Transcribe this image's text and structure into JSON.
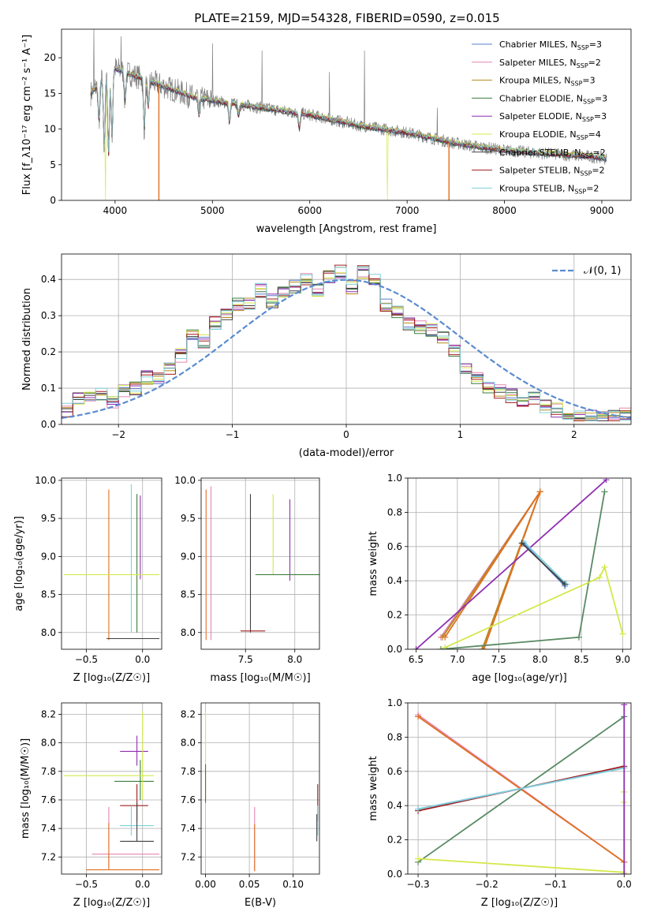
{
  "colors": {
    "Chabrier MILES": "#5b7fce",
    "Salpeter MILES": "#e286b2",
    "Kroupa MILES": "#b58a1a",
    "Chabrier ELODIE": "#3e7d3e",
    "Salpeter ELODIE": "#8e2fb0",
    "Kroupa ELODIE": "#d4e84a",
    "Chabrier STELIB": "#404040",
    "Salpeter STELIB": "#a01c1c",
    "Kroupa STELIB": "#7fd0dc",
    "Orange overlay": "#e07020",
    "Green overlay": "#5a8a64",
    "Data spectrum": "#808080",
    "Normal curve": "#5b8bd0"
  },
  "chart_data": [
    {
      "id": "spectrum",
      "type": "line",
      "title": "PLATE=2159, MJD=54328, FIBERID=0590, z=0.015",
      "xlabel": "wavelength [Angstrom, rest frame]",
      "ylabel": "Flux [f_λ10⁻¹⁷ erg cm⁻² s⁻¹ A⁻¹]",
      "xlim": [
        3450,
        9300
      ],
      "ylim": [
        0,
        24
      ],
      "xticks": [
        4000,
        5000,
        6000,
        7000,
        8000,
        9000
      ],
      "yticks": [
        0,
        5,
        10,
        15,
        20
      ],
      "grid": false,
      "legend_position": "top-right",
      "legend": [
        {
          "name": "Chabrier MILES, N_SSP=3",
          "base": "Chabrier MILES, N",
          "sub": "SSP",
          "tail": "=3"
        },
        {
          "name": "Salpeter MILES, N_SSP=2",
          "base": "Salpeter MILES, N",
          "sub": "SSP",
          "tail": "=2"
        },
        {
          "name": "Kroupa MILES, N_SSP=3",
          "base": "Kroupa MILES, N",
          "sub": "SSP",
          "tail": "=3"
        },
        {
          "name": "Chabrier ELODIE, N_SSP=3",
          "base": "Chabrier ELODIE, N",
          "sub": "SSP",
          "tail": "=3"
        },
        {
          "name": "Salpeter ELODIE, N_SSP=3",
          "base": "Salpeter ELODIE, N",
          "sub": "SSP",
          "tail": "=3"
        },
        {
          "name": "Kroupa ELODIE, N_SSP=4",
          "base": "Kroupa ELODIE, N",
          "sub": "SSP",
          "tail": "=4"
        },
        {
          "name": "Chabrier STELIB, N_SSP=2",
          "base": "Chabrier STELIB, N",
          "sub": "SSP",
          "tail": "=2"
        },
        {
          "name": "Salpeter STELIB, N_SSP=2",
          "base": "Salpeter STELIB, N",
          "sub": "SSP",
          "tail": "=2"
        },
        {
          "name": "Kroupa STELIB, N_SSP=2",
          "base": "Kroupa STELIB, N",
          "sub": "SSP",
          "tail": "=2"
        }
      ],
      "continuum": {
        "x": [
          3750,
          3900,
          4000,
          4200,
          4500,
          4800,
          5000,
          5500,
          6000,
          6500,
          7000,
          7500,
          8000,
          8500,
          9000,
          9050
        ],
        "y": [
          15,
          17.5,
          18.5,
          17.5,
          16,
          14.5,
          14,
          13,
          12,
          10.5,
          9.5,
          8,
          7,
          6.5,
          6,
          5.8
        ]
      },
      "absorption_features": [
        {
          "x": 3835,
          "y": 11
        },
        {
          "x": 3889,
          "y": 7.5
        },
        {
          "x": 3933,
          "y": 6.5
        },
        {
          "x": 3968,
          "y": 9
        },
        {
          "x": 4102,
          "y": 14
        },
        {
          "x": 4300,
          "y": 10
        },
        {
          "x": 4340,
          "y": 13
        },
        {
          "x": 4861,
          "y": 12
        },
        {
          "x": 5175,
          "y": 11
        },
        {
          "x": 5270,
          "y": 12
        },
        {
          "x": 5893,
          "y": 10
        }
      ],
      "model_dropouts": [
        {
          "x": 3900,
          "y": 0,
          "series": "Kroupa ELODIE"
        },
        {
          "x": 4450,
          "y": 0,
          "series": "Orange overlay"
        },
        {
          "x": 6800,
          "y": 0,
          "series": "Kroupa ELODIE"
        },
        {
          "x": 7430,
          "y": 0,
          "series": "Orange overlay"
        }
      ],
      "data_spikes": [
        {
          "x": 3780,
          "y": 24
        },
        {
          "x": 4060,
          "y": 23
        },
        {
          "x": 5000,
          "y": 22
        },
        {
          "x": 5510,
          "y": 21
        },
        {
          "x": 6200,
          "y": 18
        },
        {
          "x": 6560,
          "y": 21
        },
        {
          "x": 7310,
          "y": 13
        }
      ]
    },
    {
      "id": "residuals",
      "type": "line",
      "xlabel": "(data-model)/error",
      "ylabel": "Normed distribution",
      "xlim": [
        -2.5,
        2.5
      ],
      "ylim": [
        0,
        0.47
      ],
      "xticks": [
        -2,
        -1,
        0,
        1,
        2
      ],
      "yticks": [
        0.0,
        0.1,
        0.2,
        0.3,
        0.4
      ],
      "grid": true,
      "legend_position": "top-right",
      "legend": [
        "𝒩(0, 1)"
      ],
      "bins": [
        -2.5,
        -2.4,
        -2.3,
        -2.2,
        -2.1,
        -2.0,
        -1.9,
        -1.8,
        -1.7,
        -1.6,
        -1.5,
        -1.4,
        -1.3,
        -1.2,
        -1.1,
        -1.0,
        -0.9,
        -0.8,
        -0.7,
        -0.6,
        -0.5,
        -0.4,
        -0.3,
        -0.2,
        -0.1,
        0.0,
        0.1,
        0.2,
        0.3,
        0.4,
        0.5,
        0.6,
        0.7,
        0.8,
        0.9,
        1.0,
        1.1,
        1.2,
        1.3,
        1.4,
        1.5,
        1.6,
        1.7,
        1.8,
        1.9,
        2.0,
        2.1,
        2.2,
        2.3,
        2.4,
        2.5
      ],
      "hist_base": [
        0.04,
        0.075,
        0.07,
        0.08,
        0.06,
        0.09,
        0.1,
        0.13,
        0.13,
        0.15,
        0.19,
        0.25,
        0.23,
        0.28,
        0.3,
        0.33,
        0.33,
        0.37,
        0.34,
        0.37,
        0.38,
        0.4,
        0.37,
        0.41,
        0.42,
        0.38,
        0.42,
        0.4,
        0.33,
        0.31,
        0.28,
        0.27,
        0.26,
        0.24,
        0.2,
        0.16,
        0.13,
        0.1,
        0.09,
        0.08,
        0.06,
        0.07,
        0.05,
        0.04,
        0.03,
        0.025,
        0.02,
        0.02,
        0.02,
        0.03
      ],
      "normal_curve": {
        "name": "𝒩(0, 1)",
        "mean": 0,
        "sigma": 1
      }
    },
    {
      "id": "age_vs_Z",
      "type": "scatter",
      "xlabel": "Z [log₁₀(Z/Z☉)]",
      "ylabel": "age  [log₁₀(age/yr)]",
      "xlim": [
        -0.72,
        0.17
      ],
      "ylim": [
        7.78,
        10.03
      ],
      "xticks": [
        -0.5,
        0.0
      ],
      "yticks": [
        8.0,
        8.5,
        9.0,
        9.5,
        10.0
      ],
      "grid": true,
      "errorbars": [
        {
          "x": -0.3,
          "y": 9.88,
          "y0": 7.9,
          "y1": 9.88,
          "series": "Orange overlay"
        },
        {
          "x": -0.1,
          "y": 9.95,
          "y0": 8.0,
          "y1": 9.95,
          "series": "Kroupa STELIB"
        },
        {
          "x": -0.02,
          "y": 9.8,
          "y0": 8.7,
          "y1": 9.8,
          "series": "Salpeter ELODIE"
        },
        {
          "x": -0.05,
          "y": 9.82,
          "y0": 8.0,
          "y1": 9.82,
          "series": "Chabrier ELODIE"
        },
        {
          "x": -0.32,
          "y": 7.92,
          "x0": -0.32,
          "x1": 0.15,
          "series": "Chabrier STELIB"
        },
        {
          "x": 0.0,
          "y": 8.76,
          "x0": -0.7,
          "x1": 0.15,
          "series": "Kroupa ELODIE"
        }
      ]
    },
    {
      "id": "age_vs_mass",
      "type": "scatter",
      "xlabel": "mass [log₁₀(M/M☉)]",
      "ylabel": "",
      "xlim": [
        7.05,
        8.25
      ],
      "ylim": [
        7.78,
        10.03
      ],
      "xticks": [
        7.5,
        8.0
      ],
      "yticks": [
        8.0,
        8.5,
        9.0,
        9.5,
        10.0
      ],
      "grid": true,
      "errorbars": [
        {
          "x": 7.1,
          "y": 9.88,
          "y0": 7.9,
          "y1": 9.88,
          "series": "Orange overlay"
        },
        {
          "x": 7.15,
          "y": 9.92,
          "y0": 7.9,
          "y1": 9.92,
          "series": "Salpeter MILES"
        },
        {
          "x": 7.55,
          "y": 9.82,
          "y0": 8.0,
          "y1": 9.82,
          "series": "Chabrier STELIB"
        },
        {
          "x": 7.95,
          "y": 9.75,
          "y0": 8.68,
          "y1": 9.75,
          "series": "Salpeter ELODIE"
        },
        {
          "x": 7.78,
          "y": 9.82,
          "y0": 8.76,
          "y1": 9.82,
          "series": "Kroupa ELODIE"
        },
        {
          "x": 7.8,
          "y": 8.76,
          "x0": 7.6,
          "x1": 8.25,
          "series": "Chabrier ELODIE"
        },
        {
          "x": 7.45,
          "y": 8.02,
          "x0": 7.45,
          "x1": 7.7,
          "series": "Salpeter STELIB"
        }
      ]
    },
    {
      "id": "massweight_vs_age",
      "type": "line",
      "xlabel": "age  [log₁₀(age/yr)]",
      "ylabel": "mass weight",
      "xlim": [
        6.4,
        9.1
      ],
      "ylim": [
        0,
        1.0
      ],
      "xticks": [
        6.5,
        7.0,
        7.5,
        8.0,
        8.5,
        9.0
      ],
      "yticks": [
        0.0,
        0.2,
        0.4,
        0.6,
        0.8,
        1.0
      ],
      "grid": true,
      "series": [
        {
          "name": "Salpeter MILES",
          "x": [
            6.8,
            8.0,
            7.3
          ],
          "y": [
            0.07,
            0.92,
            0.0
          ]
        },
        {
          "name": "Kroupa MILES",
          "x": [
            6.82,
            8.0,
            7.3
          ],
          "y": [
            0.07,
            0.92,
            0.0
          ]
        },
        {
          "name": "Orange overlay",
          "x": [
            6.85,
            8.0,
            7.32
          ],
          "y": [
            0.07,
            0.92,
            0.0
          ]
        },
        {
          "name": "Salpeter ELODIE",
          "x": [
            6.5,
            8.8
          ],
          "y": [
            0.0,
            0.99
          ]
        },
        {
          "name": "Green overlay",
          "x": [
            6.8,
            8.47,
            8.78
          ],
          "y": [
            0.0,
            0.07,
            0.92
          ]
        },
        {
          "name": "Kroupa ELODIE",
          "x": [
            6.85,
            8.72,
            8.78,
            9.0
          ],
          "y": [
            0.01,
            0.42,
            0.48,
            0.09
          ]
        },
        {
          "name": "Chabrier MILES",
          "x": [
            7.8,
            8.3
          ],
          "y": [
            0.62,
            0.37
          ]
        },
        {
          "name": "Kroupa STELIB",
          "x": [
            7.8,
            8.32
          ],
          "y": [
            0.63,
            0.38
          ]
        },
        {
          "name": "Chabrier STELIB",
          "x": [
            7.78,
            8.3
          ],
          "y": [
            0.62,
            0.38
          ]
        }
      ]
    },
    {
      "id": "mass_vs_Z",
      "type": "scatter",
      "xlabel": "Z [log₁₀(Z/Z☉)]",
      "ylabel": "mass [log₁₀(M/M☉)]",
      "xlim": [
        -0.72,
        0.17
      ],
      "ylim": [
        7.08,
        8.28
      ],
      "xticks": [
        -0.5,
        0.0
      ],
      "yticks": [
        7.2,
        7.4,
        7.6,
        7.8,
        8.0,
        8.2
      ],
      "grid": true,
      "errorbars": [
        {
          "x": -0.3,
          "y": 7.22,
          "y0": 7.12,
          "y1": 7.55,
          "x0": -0.45,
          "x1": 0.15,
          "series": "Salpeter MILES"
        },
        {
          "x": -0.3,
          "y": 7.11,
          "y0": 7.11,
          "y1": 7.44,
          "x0": -0.5,
          "x1": 0.15,
          "series": "Orange overlay"
        },
        {
          "x": -0.05,
          "y": 7.56,
          "y0": 7.45,
          "y1": 7.71,
          "x0": -0.2,
          "x1": 0.05,
          "series": "Salpeter STELIB"
        },
        {
          "x": -0.1,
          "y": 7.42,
          "y0": 7.35,
          "y1": 7.56,
          "x0": -0.2,
          "x1": 0.1,
          "series": "Kroupa STELIB"
        },
        {
          "x": -0.05,
          "y": 7.31,
          "y0": 7.31,
          "y1": 7.58,
          "x0": -0.2,
          "x1": 0.1,
          "series": "Chabrier STELIB"
        },
        {
          "x": -0.05,
          "y": 7.94,
          "y0": 7.84,
          "y1": 8.05,
          "x0": -0.2,
          "x1": 0.05,
          "series": "Salpeter ELODIE"
        },
        {
          "x": -0.02,
          "y": 7.73,
          "y0": 7.6,
          "y1": 7.88,
          "x0": -0.25,
          "x1": 0.1,
          "series": "Chabrier ELODIE"
        },
        {
          "x": 0.0,
          "y": 7.77,
          "y0": 7.6,
          "y1": 8.22,
          "x0": -0.7,
          "x1": 0.1,
          "series": "Kroupa ELODIE"
        }
      ]
    },
    {
      "id": "mass_vs_EBV",
      "type": "scatter",
      "xlabel": "E(B-V)",
      "ylabel": "",
      "xlim": [
        -0.005,
        0.13
      ],
      "ylim": [
        7.08,
        8.28
      ],
      "xticks": [
        0.0,
        0.05,
        0.1
      ],
      "yticks": [
        7.2,
        7.4,
        7.6,
        7.8,
        8.0,
        8.2
      ],
      "grid": true,
      "errorbars": [
        {
          "x": 0.0,
          "y": 7.9,
          "y0": 7.6,
          "y1": 8.22,
          "series": "Kroupa ELODIE"
        },
        {
          "x": 0.0,
          "y": 7.7,
          "y0": 7.58,
          "y1": 7.85,
          "series": "Chabrier ELODIE"
        },
        {
          "x": 0.056,
          "y": 7.3,
          "y0": 7.1,
          "y1": 7.55,
          "series": "Salpeter MILES"
        },
        {
          "x": 0.056,
          "y": 7.25,
          "y0": 7.1,
          "y1": 7.43,
          "series": "Orange overlay"
        },
        {
          "x": 0.128,
          "y": 7.55,
          "y0": 7.45,
          "y1": 7.71,
          "series": "Salpeter STELIB"
        },
        {
          "x": 0.128,
          "y": 7.45,
          "y0": 7.35,
          "y1": 7.56,
          "series": "Kroupa STELIB"
        },
        {
          "x": 0.127,
          "y": 7.4,
          "y0": 7.31,
          "y1": 7.5,
          "series": "Chabrier STELIB"
        }
      ]
    },
    {
      "id": "massweight_vs_Z",
      "type": "line",
      "xlabel": "Z [log₁₀(Z/Z☉)]",
      "ylabel": "mass weight",
      "xlim": [
        -0.315,
        0.01
      ],
      "ylim": [
        0,
        1.0
      ],
      "xticks": [
        -0.3,
        -0.2,
        -0.1,
        0.0
      ],
      "yticks": [
        0.0,
        0.2,
        0.4,
        0.6,
        0.8,
        1.0
      ],
      "grid": true,
      "series": [
        {
          "name": "Salpeter MILES",
          "x": [
            -0.3,
            0.0
          ],
          "y": [
            0.93,
            0.07
          ]
        },
        {
          "name": "Orange overlay",
          "x": [
            -0.3,
            0.0
          ],
          "y": [
            0.92,
            0.07
          ]
        },
        {
          "name": "Green overlay",
          "x": [
            -0.3,
            0.0
          ],
          "y": [
            0.07,
            0.92
          ]
        },
        {
          "name": "Salpeter STELIB",
          "x": [
            -0.3,
            0.0
          ],
          "y": [
            0.37,
            0.63
          ]
        },
        {
          "name": "Chabrier MILES",
          "x": [
            -0.3,
            0.0
          ],
          "y": [
            0.38,
            0.62
          ]
        },
        {
          "name": "Kroupa STELIB",
          "x": [
            -0.3,
            0.0
          ],
          "y": [
            0.38,
            0.62
          ]
        },
        {
          "name": "Kroupa ELODIE",
          "x": [
            -0.3,
            0.0,
            0.0,
            0.0
          ],
          "y": [
            0.09,
            0.01,
            0.42,
            0.48
          ]
        },
        {
          "name": "Salpeter ELODIE",
          "x": [
            0.0,
            0.0
          ],
          "y": [
            0.0,
            0.99
          ]
        }
      ]
    }
  ]
}
